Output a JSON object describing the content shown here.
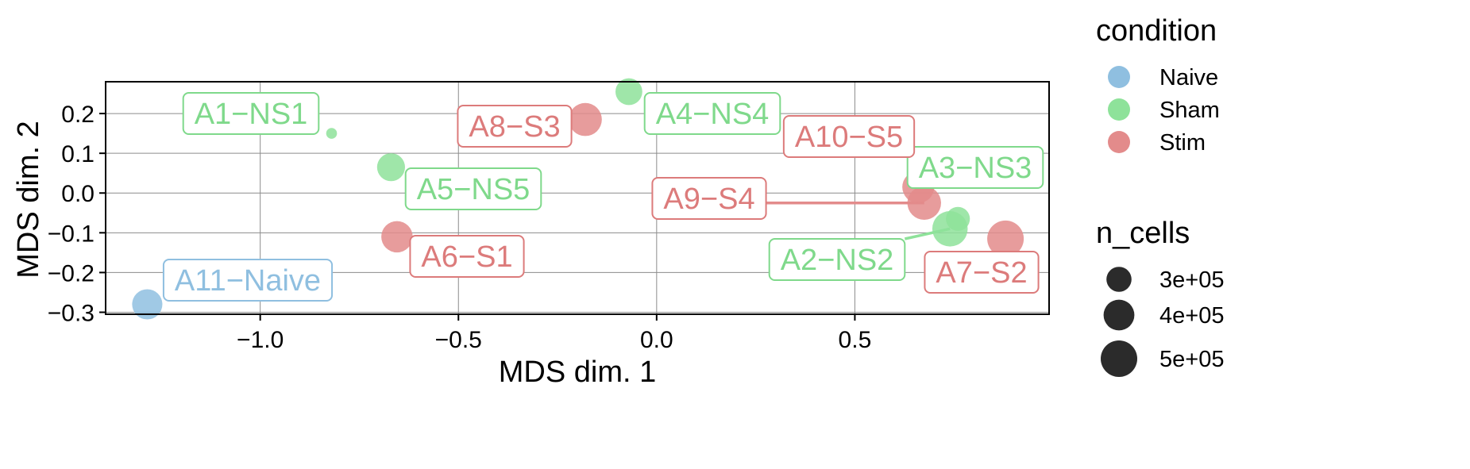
{
  "chart_data": {
    "type": "scatter",
    "xlabel": "MDS dim. 1",
    "ylabel": "MDS dim. 2",
    "xlim": [
      -1.39,
      0.99
    ],
    "ylim": [
      -0.305,
      0.28
    ],
    "x_ticks": [
      -1.0,
      -0.5,
      0.0,
      0.5
    ],
    "x_tick_labels": [
      "−1.0",
      "−0.5",
      "0.0",
      "0.5"
    ],
    "y_ticks": [
      -0.3,
      -0.2,
      -0.1,
      0.0,
      0.1,
      0.2
    ],
    "y_tick_labels": [
      "−0.3",
      "−0.2",
      "−0.1",
      "0.0",
      "0.1",
      "0.2"
    ],
    "grid": true,
    "size_variable": "n_cells",
    "color_variable": "condition",
    "points": [
      {
        "label": "A1−NS1",
        "condition": "Sham",
        "x": -0.82,
        "y": 0.15,
        "n_cells": 50000
      },
      {
        "label": "A2−NS2",
        "condition": "Sham",
        "x": 0.74,
        "y": -0.09,
        "n_cells": 480000
      },
      {
        "label": "A3−NS3",
        "condition": "Sham",
        "x": 0.76,
        "y": -0.065,
        "n_cells": 280000
      },
      {
        "label": "A4−NS4",
        "condition": "Sham",
        "x": -0.07,
        "y": 0.255,
        "n_cells": 330000
      },
      {
        "label": "A5−NS5",
        "condition": "Sham",
        "x": -0.67,
        "y": 0.065,
        "n_cells": 350000
      },
      {
        "label": "A6−S1",
        "condition": "Stim",
        "x": -0.655,
        "y": -0.11,
        "n_cells": 410000
      },
      {
        "label": "A7−S2",
        "condition": "Stim",
        "x": 0.88,
        "y": -0.115,
        "n_cells": 500000
      },
      {
        "label": "A8−S3",
        "condition": "Stim",
        "x": -0.18,
        "y": 0.185,
        "n_cells": 440000
      },
      {
        "label": "A9−S4",
        "condition": "Stim",
        "x": 0.675,
        "y": -0.025,
        "n_cells": 450000
      },
      {
        "label": "A10−S5",
        "condition": "Stim",
        "x": 0.66,
        "y": 0.015,
        "n_cells": 420000
      },
      {
        "label": "A11−Naive",
        "condition": "Naive",
        "x": -1.285,
        "y": -0.28,
        "n_cells": 390000
      }
    ],
    "legend": {
      "color": {
        "title": "condition",
        "entries": [
          {
            "name": "Naive",
            "color": "#8fbfe0"
          },
          {
            "name": "Sham",
            "color": "#8ee29a"
          },
          {
            "name": "Stim",
            "color": "#e38b8b"
          }
        ]
      },
      "size": {
        "title": "n_cells",
        "entries": [
          {
            "label": "3e+05",
            "value": 300000
          },
          {
            "label": "4e+05",
            "value": 400000
          },
          {
            "label": "5e+05",
            "value": 500000
          }
        ]
      },
      "position": "right"
    },
    "colors": {
      "Naive": "#8fbfe0",
      "Sham": "#8ee29a",
      "Stim": "#e38b8b",
      "Naive_text": "#8fbfe0",
      "Sham_text": "#7fd98b",
      "Stim_text": "#dc7b7b"
    }
  }
}
